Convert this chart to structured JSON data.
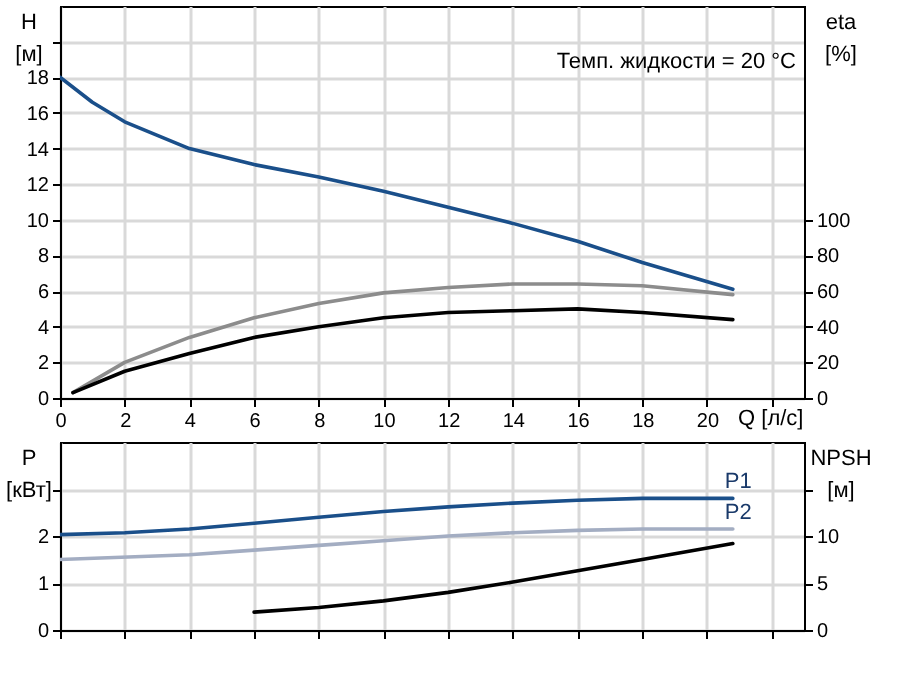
{
  "chart_data": [
    {
      "type": "line",
      "xlabel": "Q [л/с]",
      "ylabel": "H [м]",
      "y2label": "eta [%]",
      "annotations": [
        "Темп. жидкости = 20 °C"
      ],
      "xlim": [
        0,
        23
      ],
      "xticks": [
        0,
        2,
        4,
        6,
        8,
        10,
        12,
        14,
        16,
        18,
        20,
        {
          "value": 22,
          "label": null
        }
      ],
      "ylim": [
        0,
        22
      ],
      "yticks": [
        0,
        2,
        4,
        6,
        8,
        10,
        12,
        14,
        16,
        18,
        {
          "value": 20,
          "label": null
        }
      ],
      "y2lim": [
        0,
        220
      ],
      "y2ticks": [
        0,
        20,
        40,
        60,
        80,
        100
      ],
      "grid": true,
      "series": [
        {
          "color": "#1a4f8a",
          "x": [
            0,
            1,
            2,
            4,
            6,
            8,
            10,
            12,
            14,
            16,
            18,
            20.8
          ],
          "values": [
            18,
            16.6,
            15.5,
            14,
            13.1,
            12.4,
            11.6,
            10.7,
            9.8,
            8.8,
            7.6,
            6.1
          ]
        },
        {
          "color": "#8c8c8c",
          "axis": "y2",
          "x": [
            0.4,
            2,
            4,
            6,
            8,
            10,
            12,
            14,
            16,
            18,
            20.8
          ],
          "values": [
            3,
            20,
            34,
            45,
            53,
            59,
            62,
            64,
            64,
            63,
            58
          ]
        },
        {
          "color": "#000000",
          "axis": "y2",
          "x": [
            0.4,
            2,
            4,
            6,
            8,
            10,
            12,
            14,
            16,
            18,
            20.8
          ],
          "values": [
            3,
            15,
            25,
            34,
            40,
            45,
            48,
            49,
            50,
            48,
            44
          ]
        }
      ]
    },
    {
      "type": "line",
      "ylabel": "P [кВт]",
      "y2label": "NPSH [м]",
      "tick_labels": "y",
      "annotations": [
        {
          "text": "P1",
          "x": 20.8,
          "y": 2.8
        },
        {
          "text": "P2",
          "x": 20.8,
          "y": 2.15
        }
      ],
      "xlim": [
        0,
        23
      ],
      "xticks": [
        0,
        2,
        4,
        6,
        8,
        10,
        12,
        14,
        16,
        18,
        20,
        22
      ],
      "ylim": [
        0,
        4
      ],
      "yticks": [
        0,
        1,
        2,
        {
          "value": 3,
          "label": null
        }
      ],
      "y2lim": [
        0,
        20
      ],
      "y2ticks": [
        0,
        5,
        10,
        {
          "value": 15,
          "label": null
        }
      ],
      "grid": true,
      "series": [
        {
          "color": "#1a4f8a",
          "x": [
            0,
            2,
            4,
            6,
            8,
            10,
            12,
            14,
            16,
            18,
            20.8
          ],
          "values": [
            2.03,
            2.07,
            2.15,
            2.27,
            2.4,
            2.52,
            2.62,
            2.7,
            2.76,
            2.8,
            2.8
          ]
        },
        {
          "color": "#a3adc2",
          "x": [
            0,
            4,
            6,
            8,
            10,
            12,
            14,
            16,
            18,
            20.8
          ],
          "values": [
            1.5,
            1.6,
            1.7,
            1.8,
            1.9,
            2.0,
            2.07,
            2.12,
            2.15,
            2.15
          ]
        },
        {
          "color": "#000000",
          "axis": "y2",
          "x": [
            6,
            8,
            10,
            12,
            14,
            16,
            18,
            20.8
          ],
          "values": [
            1.9,
            2.4,
            3.1,
            4.0,
            5.1,
            6.3,
            7.5,
            9.2
          ]
        }
      ]
    }
  ]
}
